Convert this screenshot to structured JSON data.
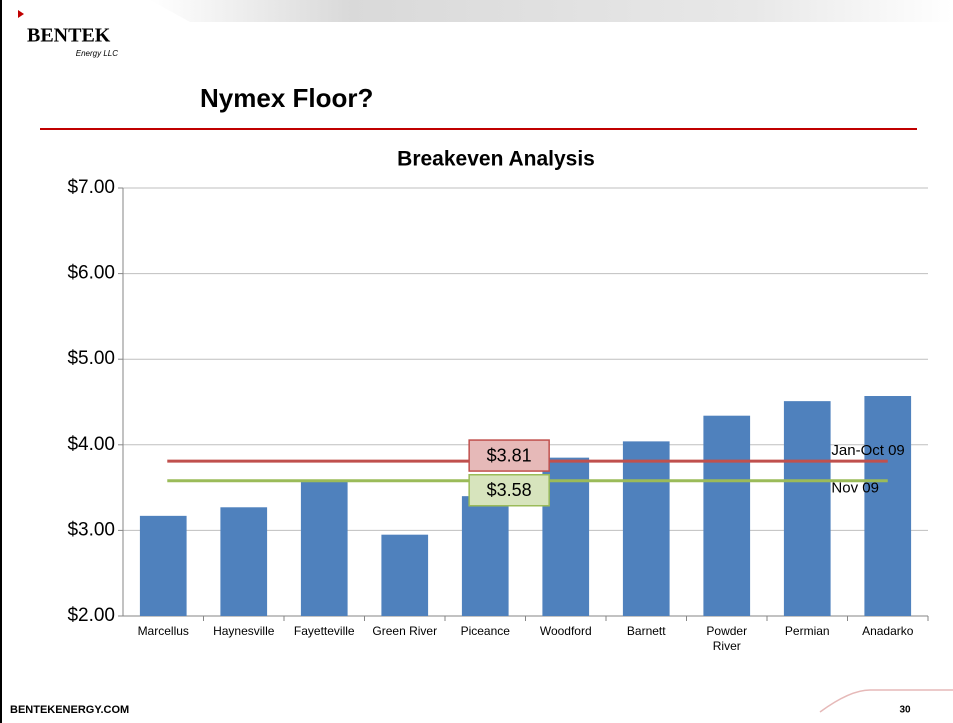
{
  "slide": {
    "logo": "BENTEK",
    "logo_sub": "Energy LLC",
    "title": "Nymex Floor?",
    "footer": "BENTEKENERGY.COM",
    "page_number": "30"
  },
  "chart_data": {
    "type": "bar",
    "title": "Breakeven Analysis",
    "categories": [
      "Marcellus",
      "Haynesville",
      "Fayetteville",
      "Green River",
      "Piceance",
      "Woodford",
      "Barnett",
      "Powder River",
      "Permian",
      "Anadarko"
    ],
    "values": [
      3.17,
      3.27,
      3.58,
      2.95,
      3.4,
      3.85,
      4.04,
      4.34,
      4.51,
      4.57
    ],
    "color": "#4f81bd",
    "ylim": [
      2,
      7
    ],
    "yticks": [
      {
        "value": 2,
        "label": "$2.00"
      },
      {
        "value": 3,
        "label": "$3.00"
      },
      {
        "value": 4,
        "label": "$4.00"
      },
      {
        "value": 5,
        "label": "$5.00"
      },
      {
        "value": 6,
        "label": "$6.00"
      },
      {
        "value": 7,
        "label": "$7.00"
      }
    ],
    "grid": true,
    "reference_lines": [
      {
        "name": "Jan-Oct 09",
        "value": 3.81,
        "label": "$3.81",
        "color": "#c0504d",
        "box_fill": "#e6b9b8"
      },
      {
        "name": "Nov 09",
        "value": 3.58,
        "label": "$3.58",
        "color": "#9bbb59",
        "box_fill": "#d7e4bd"
      }
    ]
  }
}
